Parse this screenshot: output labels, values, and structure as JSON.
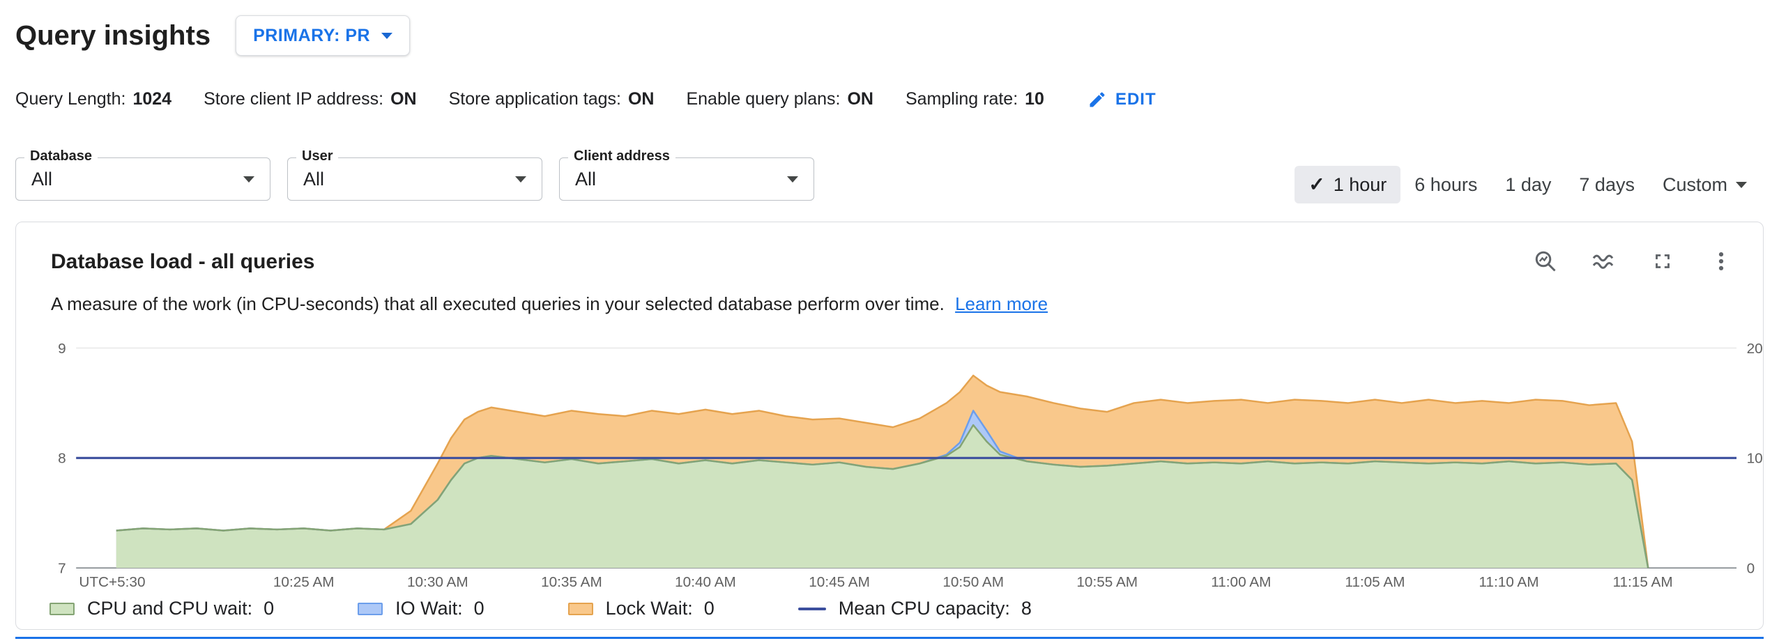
{
  "page": {
    "title": "Query insights",
    "primary_selector": "PRIMARY: PR"
  },
  "settings": {
    "items": [
      {
        "label": "Query Length:",
        "value": "1024"
      },
      {
        "label": "Store client IP address:",
        "value": "ON"
      },
      {
        "label": "Store application tags:",
        "value": "ON"
      },
      {
        "label": "Enable query plans:",
        "value": "ON"
      },
      {
        "label": "Sampling rate:",
        "value": "10"
      }
    ],
    "edit_label": "EDIT"
  },
  "filters": [
    {
      "label": "Database",
      "value": "All"
    },
    {
      "label": "User",
      "value": "All"
    },
    {
      "label": "Client address",
      "value": "All"
    }
  ],
  "time_range": {
    "options": [
      "1 hour",
      "6 hours",
      "1 day",
      "7 days"
    ],
    "selected": "1 hour",
    "custom_label": "Custom"
  },
  "card": {
    "title": "Database load - all queries",
    "description": "A measure of the work (in CPU-seconds) that all executed queries in your selected database perform over time.",
    "learn_more_label": "Learn more",
    "toolbar_icons": [
      "query-search-icon",
      "chart-style-icon",
      "fullscreen-icon",
      "more-options-icon"
    ]
  },
  "chart_data": {
    "type": "area",
    "stacked": true,
    "title": "Database load - all queries",
    "x_unit": "minutes since 10:00 AM (UTC+5:30)",
    "x_domain": [
      16.5,
      78.5
    ],
    "x_axis_corner_label": "UTC+5:30",
    "x_ticks": [
      {
        "x": 25,
        "label": "10:25 AM"
      },
      {
        "x": 30,
        "label": "10:30 AM"
      },
      {
        "x": 35,
        "label": "10:35 AM"
      },
      {
        "x": 40,
        "label": "10:40 AM"
      },
      {
        "x": 45,
        "label": "10:45 AM"
      },
      {
        "x": 50,
        "label": "10:50 AM"
      },
      {
        "x": 55,
        "label": "10:55 AM"
      },
      {
        "x": 60,
        "label": "11:00 AM"
      },
      {
        "x": 65,
        "label": "11:05 AM"
      },
      {
        "x": 70,
        "label": "11:10 AM"
      },
      {
        "x": 75,
        "label": "11:15 AM"
      }
    ],
    "ylim_left": [
      7,
      9
    ],
    "yticks_left": [
      7,
      8,
      9
    ],
    "ylim_right": [
      0,
      20
    ],
    "yticks_right_labels": [
      "0",
      "10",
      "20"
    ],
    "grid": true,
    "legend_position": "bottom",
    "series": [
      {
        "key": "lock",
        "name": "Lock Wait",
        "legend_value": "0",
        "fill": "#f9c88b",
        "stroke": "#e5a34f"
      },
      {
        "key": "io",
        "name": "IO Wait",
        "legend_value": "0",
        "fill": "#adc8f7",
        "stroke": "#6c9eeb"
      },
      {
        "key": "cpu",
        "name": "CPU and CPU wait",
        "legend_value": "0",
        "fill": "#cfe3c0",
        "stroke": "#84a474"
      }
    ],
    "x": [
      18,
      19,
      20,
      21,
      22,
      23,
      24,
      25,
      26,
      27,
      28,
      29,
      30,
      30.5,
      31,
      31.5,
      32,
      33,
      34,
      35,
      36,
      37,
      38,
      39,
      40,
      41,
      42,
      43,
      44,
      45,
      46,
      47,
      48,
      49,
      49.5,
      50,
      50.5,
      51,
      52,
      53,
      54,
      55,
      56,
      57,
      58,
      59,
      60,
      61,
      62,
      63,
      64,
      65,
      66,
      67,
      68,
      69,
      70,
      71,
      72,
      73,
      74,
      74.6,
      75.2
    ],
    "values": {
      "cpu": [
        7.34,
        7.36,
        7.35,
        7.36,
        7.34,
        7.36,
        7.35,
        7.36,
        7.34,
        7.36,
        7.35,
        7.4,
        7.62,
        7.8,
        7.95,
        8.0,
        8.02,
        7.99,
        7.96,
        7.99,
        7.95,
        7.97,
        7.99,
        7.95,
        7.98,
        7.95,
        7.98,
        7.96,
        7.94,
        7.96,
        7.92,
        7.9,
        7.95,
        8.02,
        8.1,
        8.3,
        8.15,
        8.03,
        7.97,
        7.94,
        7.92,
        7.93,
        7.95,
        7.97,
        7.95,
        7.96,
        7.95,
        7.97,
        7.95,
        7.96,
        7.95,
        7.97,
        7.96,
        7.95,
        7.96,
        7.95,
        7.97,
        7.95,
        7.96,
        7.94,
        7.95,
        7.8,
        7.0
      ],
      "io": [
        7.34,
        7.36,
        7.35,
        7.36,
        7.34,
        7.36,
        7.35,
        7.36,
        7.34,
        7.36,
        7.35,
        7.4,
        7.62,
        7.8,
        7.95,
        8.0,
        8.02,
        7.99,
        7.96,
        7.99,
        7.95,
        7.97,
        7.99,
        7.95,
        7.98,
        7.95,
        7.98,
        7.96,
        7.94,
        7.96,
        7.92,
        7.9,
        7.95,
        8.03,
        8.14,
        8.43,
        8.25,
        8.06,
        7.97,
        7.94,
        7.92,
        7.93,
        7.95,
        7.97,
        7.95,
        7.96,
        7.95,
        7.97,
        7.95,
        7.96,
        7.95,
        7.97,
        7.96,
        7.95,
        7.96,
        7.95,
        7.97,
        7.95,
        7.96,
        7.94,
        7.95,
        7.8,
        7.0
      ],
      "lock": [
        7.34,
        7.36,
        7.35,
        7.36,
        7.34,
        7.36,
        7.35,
        7.36,
        7.34,
        7.36,
        7.35,
        7.52,
        7.95,
        8.18,
        8.35,
        8.42,
        8.46,
        8.42,
        8.38,
        8.43,
        8.4,
        8.38,
        8.43,
        8.4,
        8.44,
        8.4,
        8.43,
        8.38,
        8.35,
        8.36,
        8.32,
        8.28,
        8.36,
        8.5,
        8.6,
        8.75,
        8.66,
        8.6,
        8.56,
        8.5,
        8.45,
        8.42,
        8.5,
        8.53,
        8.5,
        8.52,
        8.53,
        8.5,
        8.53,
        8.52,
        8.5,
        8.53,
        8.5,
        8.53,
        8.5,
        8.52,
        8.5,
        8.53,
        8.52,
        8.48,
        8.5,
        8.15,
        7.0
      ]
    },
    "mean_line": {
      "key": "mean",
      "name": "Mean CPU capacity",
      "value": 8,
      "color": "#3c4f9e"
    }
  },
  "legend": {
    "items": [
      {
        "label": "CPU and CPU wait:",
        "value": "0",
        "swatch": "cpu"
      },
      {
        "label": "IO Wait:",
        "value": "0",
        "swatch": "io"
      },
      {
        "label": "Lock Wait:",
        "value": "0",
        "swatch": "lock"
      },
      {
        "label": "Mean CPU capacity:",
        "value": "8",
        "swatch": "mean"
      }
    ]
  },
  "colors": {
    "accent_blue": "#1a73e8",
    "selected_chip_bg": "#e9eaee",
    "card_border": "#dadce0",
    "axis_text": "#616161"
  }
}
